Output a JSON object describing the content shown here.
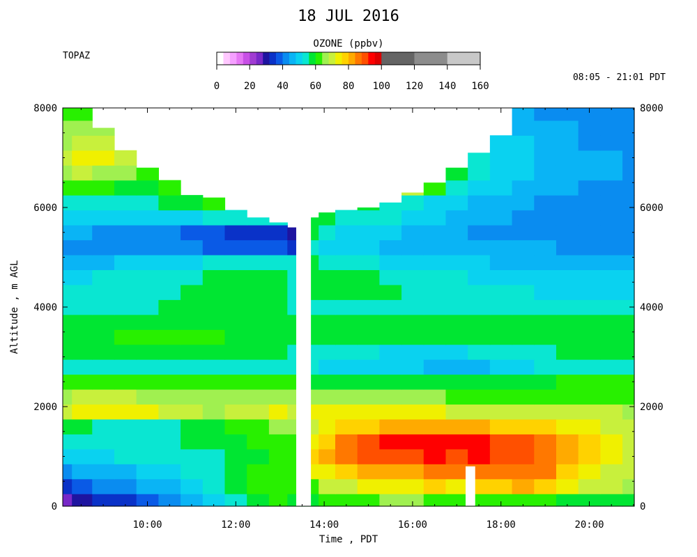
{
  "header": {
    "title": "18 JUL 2016",
    "site": "TOPAZ",
    "time_range": "08:05 - 21:01 PDT"
  },
  "colorbar": {
    "title": "OZONE (ppbv)",
    "ticks": [
      "0",
      "20",
      "40",
      "60",
      "80",
      "100",
      "120",
      "140",
      "160"
    ],
    "colors": [
      "#ffffff",
      "#ffc8ff",
      "#f5a0ff",
      "#e678f5",
      "#c850e6",
      "#a03cd2",
      "#7828c8",
      "#1e14a0",
      "#0a32c8",
      "#0a5ae6",
      "#0a8cf0",
      "#0ab4f5",
      "#0ad2f0",
      "#0ae6d2",
      "#00e632",
      "#28f000",
      "#a0f050",
      "#c8f03c",
      "#f0f000",
      "#ffd200",
      "#ffaa00",
      "#ff7800",
      "#ff5000",
      "#ff0000",
      "#dc0000",
      "#b40000",
      "#646464",
      "#8c8c8c",
      "#c8c8c8"
    ]
  },
  "chart_data": {
    "type": "heatmap",
    "title": "18 JUL 2016",
    "xlabel": "Time , PDT",
    "ylabel": "Altitude , m AGL",
    "xlim": [
      "08:05",
      "21:01"
    ],
    "ylim": [
      0,
      8000
    ],
    "x_ticks": [
      "10:00",
      "12:00",
      "14:00",
      "16:00",
      "18:00",
      "20:00"
    ],
    "y_ticks": [
      "0",
      "2000",
      "4000",
      "6000",
      "8000"
    ],
    "y_ticks_right": [
      "0",
      "2000",
      "4000",
      "6000",
      "8000"
    ],
    "z_label": "OZONE (ppbv)",
    "z_range": [
      0,
      160
    ],
    "times": [
      "08:05",
      "08:30",
      "09:00",
      "09:30",
      "10:00",
      "10:30",
      "11:00",
      "11:30",
      "12:00",
      "12:30",
      "13:00",
      "13:20",
      "13:45",
      "14:00",
      "14:30",
      "15:00",
      "15:30",
      "16:00",
      "16:30",
      "17:00",
      "17:30",
      "18:00",
      "18:30",
      "19:00",
      "19:30",
      "20:00",
      "20:30",
      "21:00"
    ],
    "altitudes": [
      100,
      400,
      700,
      1000,
      1300,
      1600,
      1900,
      2200,
      2500,
      2800,
      3100,
      3400,
      3700,
      4000,
      4300,
      4600,
      4900,
      5200,
      5500,
      5800,
      6100,
      6400,
      6700,
      7000,
      7300,
      7600,
      7900
    ],
    "max_altitude_per_time": [
      8000,
      8000,
      7600,
      7200,
      6800,
      6600,
      6400,
      6200,
      6000,
      5800,
      5700,
      5600,
      5800,
      5900,
      5950,
      6000,
      6100,
      6300,
      6500,
      6800,
      7100,
      7600,
      8000,
      8000,
      8000,
      8000,
      8000,
      8000
    ],
    "gaps": [
      {
        "from": "13:22",
        "to": "13:42",
        "max_altitude": 8000
      },
      {
        "from": "17:12",
        "to": "17:25",
        "max_altitude": 800
      }
    ],
    "ozone_ppbv": [
      [
        25,
        28,
        32,
        35,
        38,
        42,
        45,
        50,
        55,
        58,
        60,
        58,
        58,
        60,
        62,
        63,
        64,
        64,
        63,
        62,
        62,
        62,
        62,
        60,
        58,
        57,
        56,
        56
      ],
      [
        35,
        38,
        40,
        42,
        44,
        46,
        50,
        52,
        56,
        60,
        62,
        60,
        62,
        68,
        70,
        72,
        74,
        75,
        76,
        75,
        76,
        78,
        80,
        76,
        72,
        70,
        68,
        66
      ],
      [
        42,
        44,
        46,
        47,
        48,
        50,
        52,
        54,
        56,
        60,
        62,
        60,
        72,
        75,
        78,
        80,
        82,
        82,
        84,
        84,
        85,
        86,
        86,
        84,
        78,
        74,
        70,
        68
      ],
      [
        48,
        48,
        50,
        52,
        52,
        54,
        54,
        55,
        56,
        58,
        60,
        60,
        76,
        80,
        84,
        88,
        90,
        90,
        92,
        90,
        92,
        90,
        88,
        86,
        82,
        76,
        72,
        70
      ],
      [
        52,
        52,
        54,
        54,
        55,
        55,
        56,
        56,
        58,
        60,
        62,
        62,
        74,
        78,
        84,
        88,
        92,
        92,
        94,
        94,
        92,
        90,
        88,
        84,
        80,
        76,
        72,
        68
      ],
      [
        56,
        56,
        55,
        54,
        55,
        55,
        56,
        58,
        60,
        62,
        64,
        64,
        70,
        72,
        76,
        78,
        80,
        80,
        82,
        82,
        80,
        78,
        78,
        76,
        74,
        72,
        70,
        68
      ],
      [
        70,
        72,
        74,
        74,
        72,
        70,
        68,
        66,
        68,
        70,
        72,
        70,
        72,
        72,
        72,
        72,
        74,
        72,
        72,
        70,
        70,
        70,
        70,
        70,
        68,
        68,
        68,
        66
      ],
      [
        66,
        68,
        68,
        68,
        66,
        66,
        66,
        66,
        66,
        66,
        66,
        64,
        66,
        66,
        64,
        64,
        64,
        64,
        64,
        62,
        62,
        62,
        62,
        62,
        62,
        60,
        60,
        60
      ],
      [
        62,
        62,
        62,
        62,
        62,
        62,
        62,
        62,
        62,
        62,
        62,
        60,
        58,
        58,
        56,
        56,
        56,
        56,
        56,
        56,
        56,
        58,
        58,
        58,
        60,
        60,
        60,
        60
      ],
      [
        54,
        54,
        54,
        54,
        54,
        54,
        54,
        54,
        54,
        54,
        54,
        52,
        52,
        50,
        50,
        48,
        48,
        48,
        46,
        46,
        46,
        48,
        50,
        52,
        52,
        54,
        54,
        54
      ],
      [
        56,
        56,
        56,
        58,
        58,
        56,
        56,
        56,
        56,
        56,
        56,
        54,
        54,
        54,
        52,
        52,
        50,
        50,
        50,
        50,
        52,
        52,
        54,
        54,
        56,
        56,
        56,
        56
      ],
      [
        58,
        58,
        58,
        60,
        60,
        60,
        60,
        60,
        58,
        58,
        58,
        56,
        58,
        58,
        58,
        58,
        58,
        58,
        58,
        58,
        58,
        58,
        58,
        58,
        58,
        58,
        58,
        58
      ],
      [
        58,
        58,
        58,
        58,
        58,
        58,
        58,
        58,
        58,
        58,
        58,
        56,
        56,
        56,
        56,
        58,
        58,
        58,
        56,
        56,
        56,
        56,
        56,
        56,
        56,
        56,
        56,
        56
      ],
      [
        55,
        55,
        55,
        55,
        55,
        56,
        56,
        56,
        56,
        56,
        56,
        54,
        54,
        54,
        54,
        54,
        54,
        54,
        54,
        54,
        54,
        54,
        54,
        52,
        52,
        52,
        52,
        52
      ],
      [
        52,
        52,
        52,
        52,
        54,
        54,
        56,
        58,
        58,
        58,
        56,
        54,
        56,
        56,
        56,
        56,
        56,
        54,
        54,
        52,
        52,
        52,
        52,
        50,
        50,
        50,
        50,
        50
      ],
      [
        50,
        50,
        52,
        52,
        52,
        54,
        54,
        56,
        56,
        58,
        56,
        54,
        58,
        56,
        56,
        56,
        54,
        54,
        52,
        52,
        50,
        50,
        50,
        50,
        48,
        48,
        48,
        48
      ],
      [
        46,
        46,
        46,
        48,
        48,
        50,
        50,
        52,
        52,
        54,
        54,
        52,
        56,
        54,
        52,
        52,
        50,
        50,
        48,
        48,
        48,
        46,
        46,
        46,
        46,
        46,
        46,
        46
      ],
      [
        42,
        42,
        42,
        42,
        40,
        40,
        40,
        38,
        38,
        36,
        36,
        34,
        52,
        50,
        48,
        48,
        46,
        46,
        44,
        44,
        44,
        44,
        44,
        44,
        42,
        42,
        42,
        42
      ],
      [
        44,
        44,
        42,
        42,
        40,
        40,
        38,
        36,
        34,
        32,
        32,
        30,
        56,
        52,
        50,
        50,
        48,
        46,
        44,
        44,
        42,
        42,
        42,
        42,
        40,
        40,
        40,
        40
      ],
      [
        50,
        50,
        50,
        50,
        50,
        50,
        50,
        52,
        52,
        54,
        54,
        52,
        58,
        56,
        54,
        54,
        52,
        50,
        48,
        46,
        44,
        44,
        42,
        42,
        40,
        40,
        40,
        40
      ],
      [
        55,
        55,
        55,
        55,
        55,
        56,
        58,
        60,
        0,
        0,
        0,
        0,
        0,
        0,
        0,
        56,
        54,
        52,
        50,
        48,
        46,
        44,
        44,
        42,
        42,
        40,
        40,
        40
      ],
      [
        62,
        62,
        60,
        58,
        58,
        62,
        0,
        0,
        0,
        0,
        0,
        0,
        0,
        0,
        0,
        0,
        0,
        68,
        60,
        54,
        50,
        48,
        46,
        44,
        44,
        42,
        42,
        40
      ],
      [
        66,
        68,
        66,
        64,
        62,
        0,
        0,
        0,
        0,
        0,
        0,
        0,
        0,
        0,
        0,
        0,
        0,
        0,
        0,
        58,
        54,
        50,
        48,
        46,
        46,
        44,
        44,
        42
      ],
      [
        70,
        74,
        72,
        68,
        0,
        0,
        0,
        0,
        0,
        0,
        0,
        0,
        0,
        0,
        0,
        0,
        0,
        0,
        0,
        0,
        52,
        50,
        48,
        46,
        46,
        44,
        44,
        42
      ],
      [
        66,
        70,
        70,
        0,
        0,
        0,
        0,
        0,
        0,
        0,
        0,
        0,
        0,
        0,
        0,
        0,
        0,
        0,
        0,
        0,
        0,
        50,
        48,
        46,
        44,
        42,
        42,
        40
      ],
      [
        64,
        66,
        66,
        0,
        0,
        0,
        0,
        0,
        0,
        0,
        0,
        0,
        0,
        0,
        0,
        0,
        0,
        0,
        0,
        0,
        0,
        0,
        46,
        44,
        44,
        42,
        42,
        40
      ],
      [
        60,
        62,
        0,
        0,
        0,
        0,
        0,
        0,
        0,
        0,
        0,
        0,
        0,
        0,
        0,
        0,
        0,
        0,
        0,
        0,
        0,
        0,
        46,
        42,
        40,
        40,
        40,
        40
      ]
    ]
  }
}
